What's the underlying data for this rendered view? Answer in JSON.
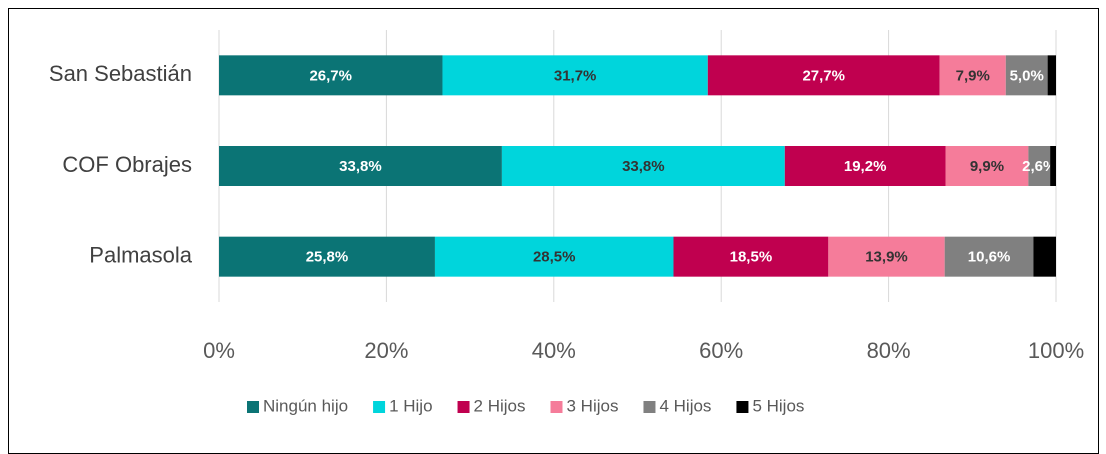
{
  "chart_data": {
    "type": "stacked_bar_horizontal",
    "categories": [
      "San Sebastián",
      "COF Obrajes",
      "Palmasola"
    ],
    "series": [
      {
        "name": "Ningún hijo",
        "color": "#0b7475",
        "label_color": "#ffffff",
        "values": [
          26.7,
          33.8,
          25.8
        ],
        "value_labels": [
          "26,7%",
          "33,8%",
          "25,8%"
        ]
      },
      {
        "name": "1 Hijo",
        "color": "#00d5dc",
        "label_color": "#333333",
        "values": [
          31.7,
          33.8,
          28.5
        ],
        "value_labels": [
          "31,7%",
          "33,8%",
          "28,5%"
        ]
      },
      {
        "name": "2 Hijos",
        "color": "#c0004f",
        "label_color": "#ffffff",
        "values": [
          27.7,
          19.2,
          18.5
        ],
        "value_labels": [
          "27,7%",
          "19,2%",
          "18,5%"
        ]
      },
      {
        "name": "3 Hijos",
        "color": "#f57c9a",
        "label_color": "#333333",
        "values": [
          7.9,
          9.9,
          13.9
        ],
        "value_labels": [
          "7,9%",
          "9,9%",
          "13,9%"
        ]
      },
      {
        "name": "4 Hijos",
        "color": "#808080",
        "label_color": "#ffffff",
        "values": [
          5.0,
          2.6,
          10.6
        ],
        "value_labels": [
          "5,0%",
          "2,6%",
          "10,6%"
        ]
      },
      {
        "name": "5 Hijos",
        "color": "#000000",
        "label_color": "#ffffff",
        "values": [
          1.0,
          0.7,
          2.7
        ],
        "value_labels": [
          null,
          null,
          null
        ]
      }
    ],
    "xlim": [
      0,
      100
    ],
    "xticks": [
      {
        "value": 0,
        "label": "0%"
      },
      {
        "value": 20,
        "label": "20%"
      },
      {
        "value": 40,
        "label": "40%"
      },
      {
        "value": 60,
        "label": "60%"
      },
      {
        "value": 80,
        "label": "80%"
      },
      {
        "value": 100,
        "label": "100%"
      }
    ],
    "grid": true,
    "legend": "bottom"
  }
}
